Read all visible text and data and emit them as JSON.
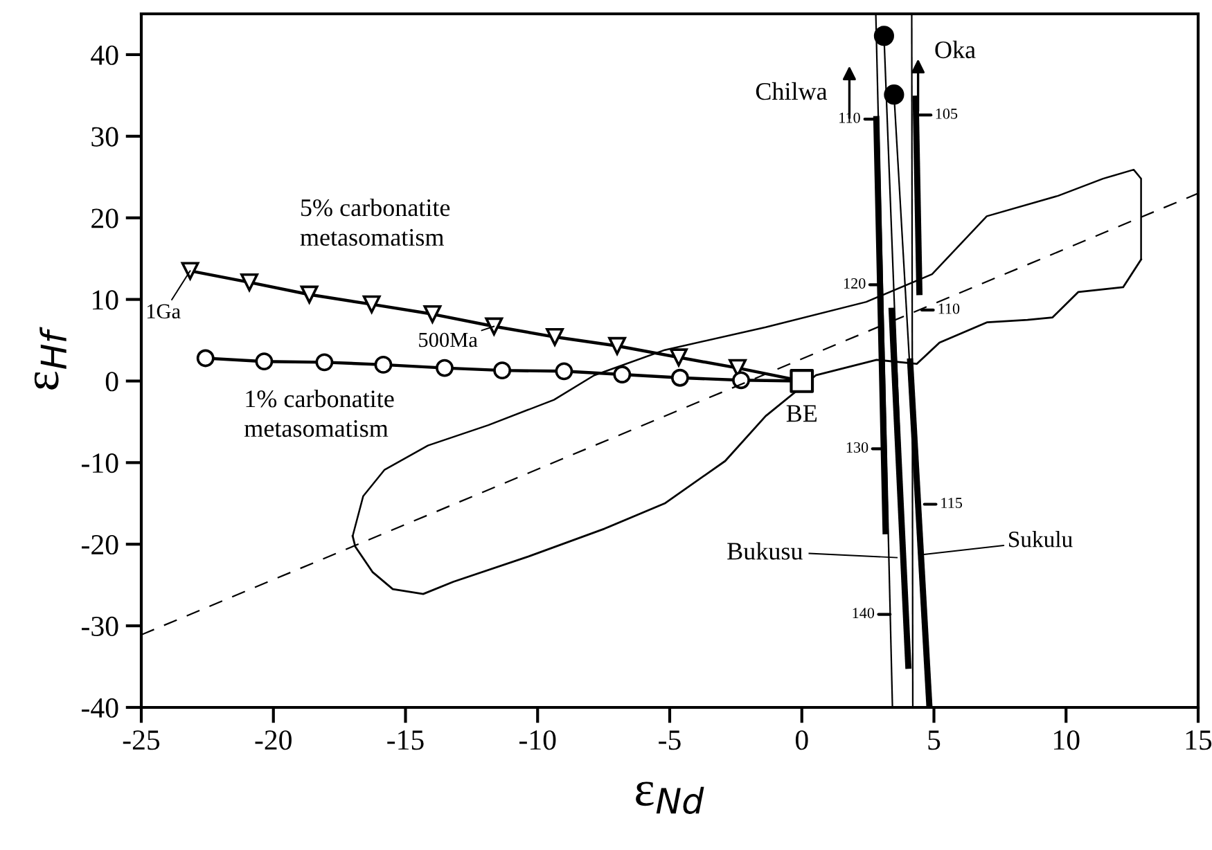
{
  "chart_data": {
    "type": "line",
    "xlabel": "ε$_{Nd}$",
    "ylabel": "ε$_{Hf}$",
    "xlim": [
      -25,
      15
    ],
    "ylim": [
      -40,
      45
    ],
    "xticks": [
      -25,
      -20,
      -15,
      -10,
      -5,
      0,
      5,
      10,
      15
    ],
    "yticks": [
      -40,
      -30,
      -20,
      -10,
      0,
      10,
      20,
      30,
      40
    ],
    "grid": false,
    "legend": false,
    "series": [
      {
        "name": "5% carbonatite\nmetasomatism",
        "marker": "triangle",
        "color": "#000000",
        "x": [
          -23.15,
          -20.91,
          -18.64,
          -16.28,
          -13.98,
          -11.65,
          -9.35,
          -6.99,
          -4.66,
          -2.43,
          0
        ],
        "values": [
          13.5,
          12.1,
          10.6,
          9.4,
          8.2,
          6.7,
          5.4,
          4.3,
          2.9,
          1.6,
          0
        ]
      },
      {
        "name": "1% carbonatite\nmetasomatism",
        "marker": "circle",
        "color": "#000000",
        "x": [
          -22.57,
          -20.35,
          -18.07,
          -15.84,
          -13.52,
          -11.34,
          -9.0,
          -6.8,
          -4.61,
          -2.3,
          0
        ],
        "values": [
          2.8,
          2.4,
          2.3,
          2.0,
          1.6,
          1.3,
          1.2,
          0.8,
          0.4,
          0.1,
          0
        ]
      },
      {
        "type": "scatter",
        "marker": "square",
        "color": "#000000",
        "x": [
          0
        ],
        "values": [
          0
        ]
      },
      {
        "type": "scatter",
        "marker": "circle",
        "color": "#000000",
        "x": [
          3.11,
          3.49
        ],
        "values": [
          42.3,
          35.1
        ]
      },
      {
        "color": "#000000",
        "x": [
          2.8,
          3.43
        ],
        "values": [
          45,
          -40
        ]
      },
      {
        "color": "#000000",
        "x": [
          3.11,
          4.03
        ],
        "values": [
          42.3,
          -34.9
        ]
      },
      {
        "color": "#000000",
        "x": [
          3.49,
          4.83
        ],
        "values": [
          35.1,
          -40
        ]
      },
      {
        "color": "#000000",
        "x": [
          4.16,
          4.2
        ],
        "values": [
          45,
          -40
        ]
      },
      {
        "color": "#000000",
        "x": [
          2.82,
          3.17
        ],
        "values": [
          32.1,
          -18.4
        ]
      },
      {
        "color": "#000000",
        "x": [
          4.31,
          4.45
        ],
        "values": [
          34.6,
          10.9
        ]
      },
      {
        "color": "#000000",
        "x": [
          3.4,
          4.03
        ],
        "values": [
          8.6,
          -34.9
        ]
      },
      {
        "color": "#000000",
        "x": [
          4.1,
          4.83
        ],
        "values": [
          2.4,
          -40
        ]
      },
      {
        "color": "#000000",
        "line_style": "dashed",
        "x": [
          -25,
          15
        ],
        "values": [
          -31.1,
          23.0
        ]
      },
      {
        "color": "#000000",
        "x": [
          -17.0,
          -16.6,
          -15.8,
          -14.15,
          -11.86,
          -9.38,
          -7.86,
          -5.19,
          -1.37,
          2.44,
          4.93,
          7.0,
          9.7,
          11.4,
          12.56,
          12.84,
          12.84
        ],
        "values": [
          -19.0,
          -14.1,
          -10.9,
          -7.9,
          -5.4,
          -2.3,
          0.7,
          3.8,
          6.6,
          9.7,
          13.1,
          20.2,
          22.7,
          24.8,
          25.9,
          24.8,
          14.9
        ]
      },
      {
        "color": "#000000",
        "x": [
          -17.0,
          -16.9,
          -16.25,
          -15.48,
          -14.33,
          -13.19,
          -10.34,
          -7.47,
          -5.19,
          -2.9,
          -1.37,
          0.53,
          2.83,
          4.35,
          5.21,
          7.02,
          8.54,
          9.49,
          10.46,
          12.16,
          12.84
        ],
        "values": [
          -19.0,
          -20.3,
          -23.4,
          -25.5,
          -26.1,
          -24.6,
          -21.5,
          -18.1,
          -15.0,
          -9.8,
          -4.3,
          0.7,
          2.6,
          2.1,
          4.7,
          7.2,
          7.5,
          7.8,
          10.9,
          11.5,
          14.9
        ]
      }
    ],
    "annotations": [
      {
        "text": "1Ga",
        "x": -23.15,
        "y": 13.5
      },
      {
        "text": "500Ma",
        "x": -11.65,
        "y": 6.7
      },
      {
        "text": "BE",
        "x": 0,
        "y": 0
      },
      "Chilwa",
      "Oka",
      "Bukusu",
      {
        "text": "Sukulu",
        "x": 4.51,
        "y": -21.3
      },
      {
        "text": "110",
        "x": 2.82,
        "y": 32.1
      },
      {
        "text": "120",
        "x": 3.01,
        "y": 11.8
      },
      {
        "text": "130",
        "x": 3.11,
        "y": -8.3
      },
      {
        "text": "140",
        "x": 3.34,
        "y": -28.6
      },
      {
        "text": "105",
        "x": 4.45,
        "y": 32.6
      },
      {
        "text": "110",
        "x": 4.54,
        "y": 8.7
      },
      {
        "text": "115",
        "x": 4.64,
        "y": -15.1
      }
    ]
  }
}
